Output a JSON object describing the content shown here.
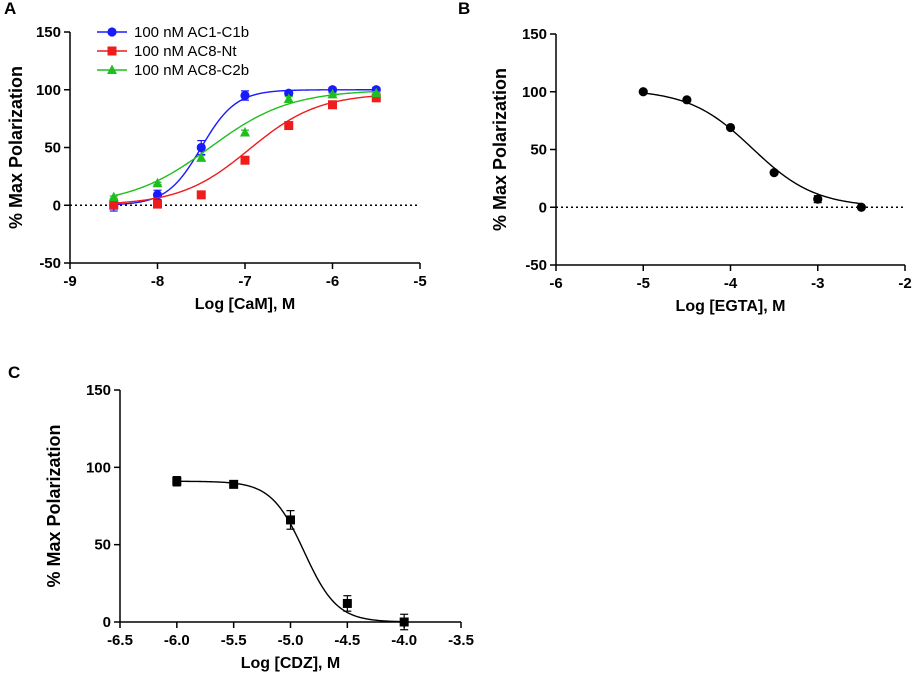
{
  "chart_data": [
    {
      "panel": "A",
      "type": "scatter",
      "xlabel": "Log [CaM], M",
      "ylabel": "% Max Polarization",
      "xlim": [
        -9,
        -5
      ],
      "ylim": [
        -50,
        150
      ],
      "xticks": [
        "-9",
        "-8",
        "-7",
        "-6",
        "-5"
      ],
      "yticks": [
        "-50",
        "0",
        "50",
        "100",
        "150"
      ],
      "reference_line_y": 0,
      "legend": "top-left",
      "series": [
        {
          "name": "100 nM AC1-C1b",
          "color": "#1a1aff",
          "marker": "circle",
          "x": [
            -8.5,
            -8.0,
            -7.5,
            -7.0,
            -6.5,
            -6.0,
            -5.5
          ],
          "y": [
            0,
            9,
            50,
            95,
            97,
            100,
            100
          ],
          "err": [
            5,
            4,
            6,
            4,
            2,
            2,
            2
          ],
          "fit": {
            "bottom": 0,
            "top": 100,
            "logEC50": -7.5,
            "hill": 2.2
          }
        },
        {
          "name": "100 nM AC8-Nt",
          "color": "#ee1c1c",
          "marker": "square",
          "x": [
            -8.5,
            -8.0,
            -7.5,
            -7.0,
            -6.5,
            -6.0,
            -5.5
          ],
          "y": [
            0,
            1,
            9,
            39,
            69,
            87,
            93
          ],
          "err": [
            1,
            1,
            1,
            2,
            2,
            2,
            2
          ],
          "fit": {
            "bottom": 0,
            "top": 97,
            "logEC50": -6.95,
            "hill": 1.1
          }
        },
        {
          "name": "100 nM AC8-C2b",
          "color": "#1fbf1f",
          "marker": "triangle",
          "x": [
            -8.5,
            -8.0,
            -7.5,
            -7.0,
            -6.5,
            -6.0,
            -5.5
          ],
          "y": [
            7,
            19,
            41,
            63,
            92,
            96,
            97
          ],
          "err": [
            1,
            1,
            2,
            2,
            2,
            1,
            1
          ],
          "fit": {
            "bottom": 0,
            "top": 100,
            "logEC50": -7.4,
            "hill": 0.95
          }
        }
      ]
    },
    {
      "panel": "B",
      "type": "scatter",
      "xlabel": "Log [EGTA], M",
      "ylabel": "% Max Polarization",
      "xlim": [
        -6,
        -2
      ],
      "ylim": [
        -50,
        150
      ],
      "xticks": [
        "-6",
        "-5",
        "-4",
        "-3",
        "-2"
      ],
      "yticks": [
        "-50",
        "0",
        "50",
        "100",
        "150"
      ],
      "reference_line_y": 0,
      "series": [
        {
          "name": "EGTA",
          "color": "#000000",
          "marker": "circle",
          "x": [
            -5.0,
            -4.5,
            -4.0,
            -3.5,
            -3.0,
            -2.5
          ],
          "y": [
            100,
            93,
            69,
            30,
            7,
            0
          ],
          "err": [
            1,
            1,
            1,
            1,
            3,
            1
          ],
          "fit": {
            "bottom": 0,
            "top": 102,
            "logEC50": -3.75,
            "hill": -1.2
          }
        }
      ]
    },
    {
      "panel": "C",
      "type": "scatter",
      "xlabel": "Log [CDZ], M",
      "ylabel": "% Max Polarization",
      "xlim": [
        -6.5,
        -3.5
      ],
      "ylim": [
        0,
        150
      ],
      "xticks": [
        "-6.5",
        "-6.0",
        "-5.5",
        "-5.0",
        "-4.5",
        "-4.0",
        "-3.5"
      ],
      "yticks": [
        "0",
        "50",
        "100",
        "150"
      ],
      "series": [
        {
          "name": "CDZ",
          "color": "#000000",
          "marker": "square",
          "x": [
            -6.0,
            -5.5,
            -5.0,
            -4.5,
            -4.0
          ],
          "y": [
            91,
            89,
            66,
            12,
            0
          ],
          "err": [
            3,
            2,
            6,
            5,
            5
          ],
          "fit": {
            "bottom": 0,
            "top": 91,
            "logEC50": -4.88,
            "hill": -3.0
          }
        }
      ]
    }
  ]
}
